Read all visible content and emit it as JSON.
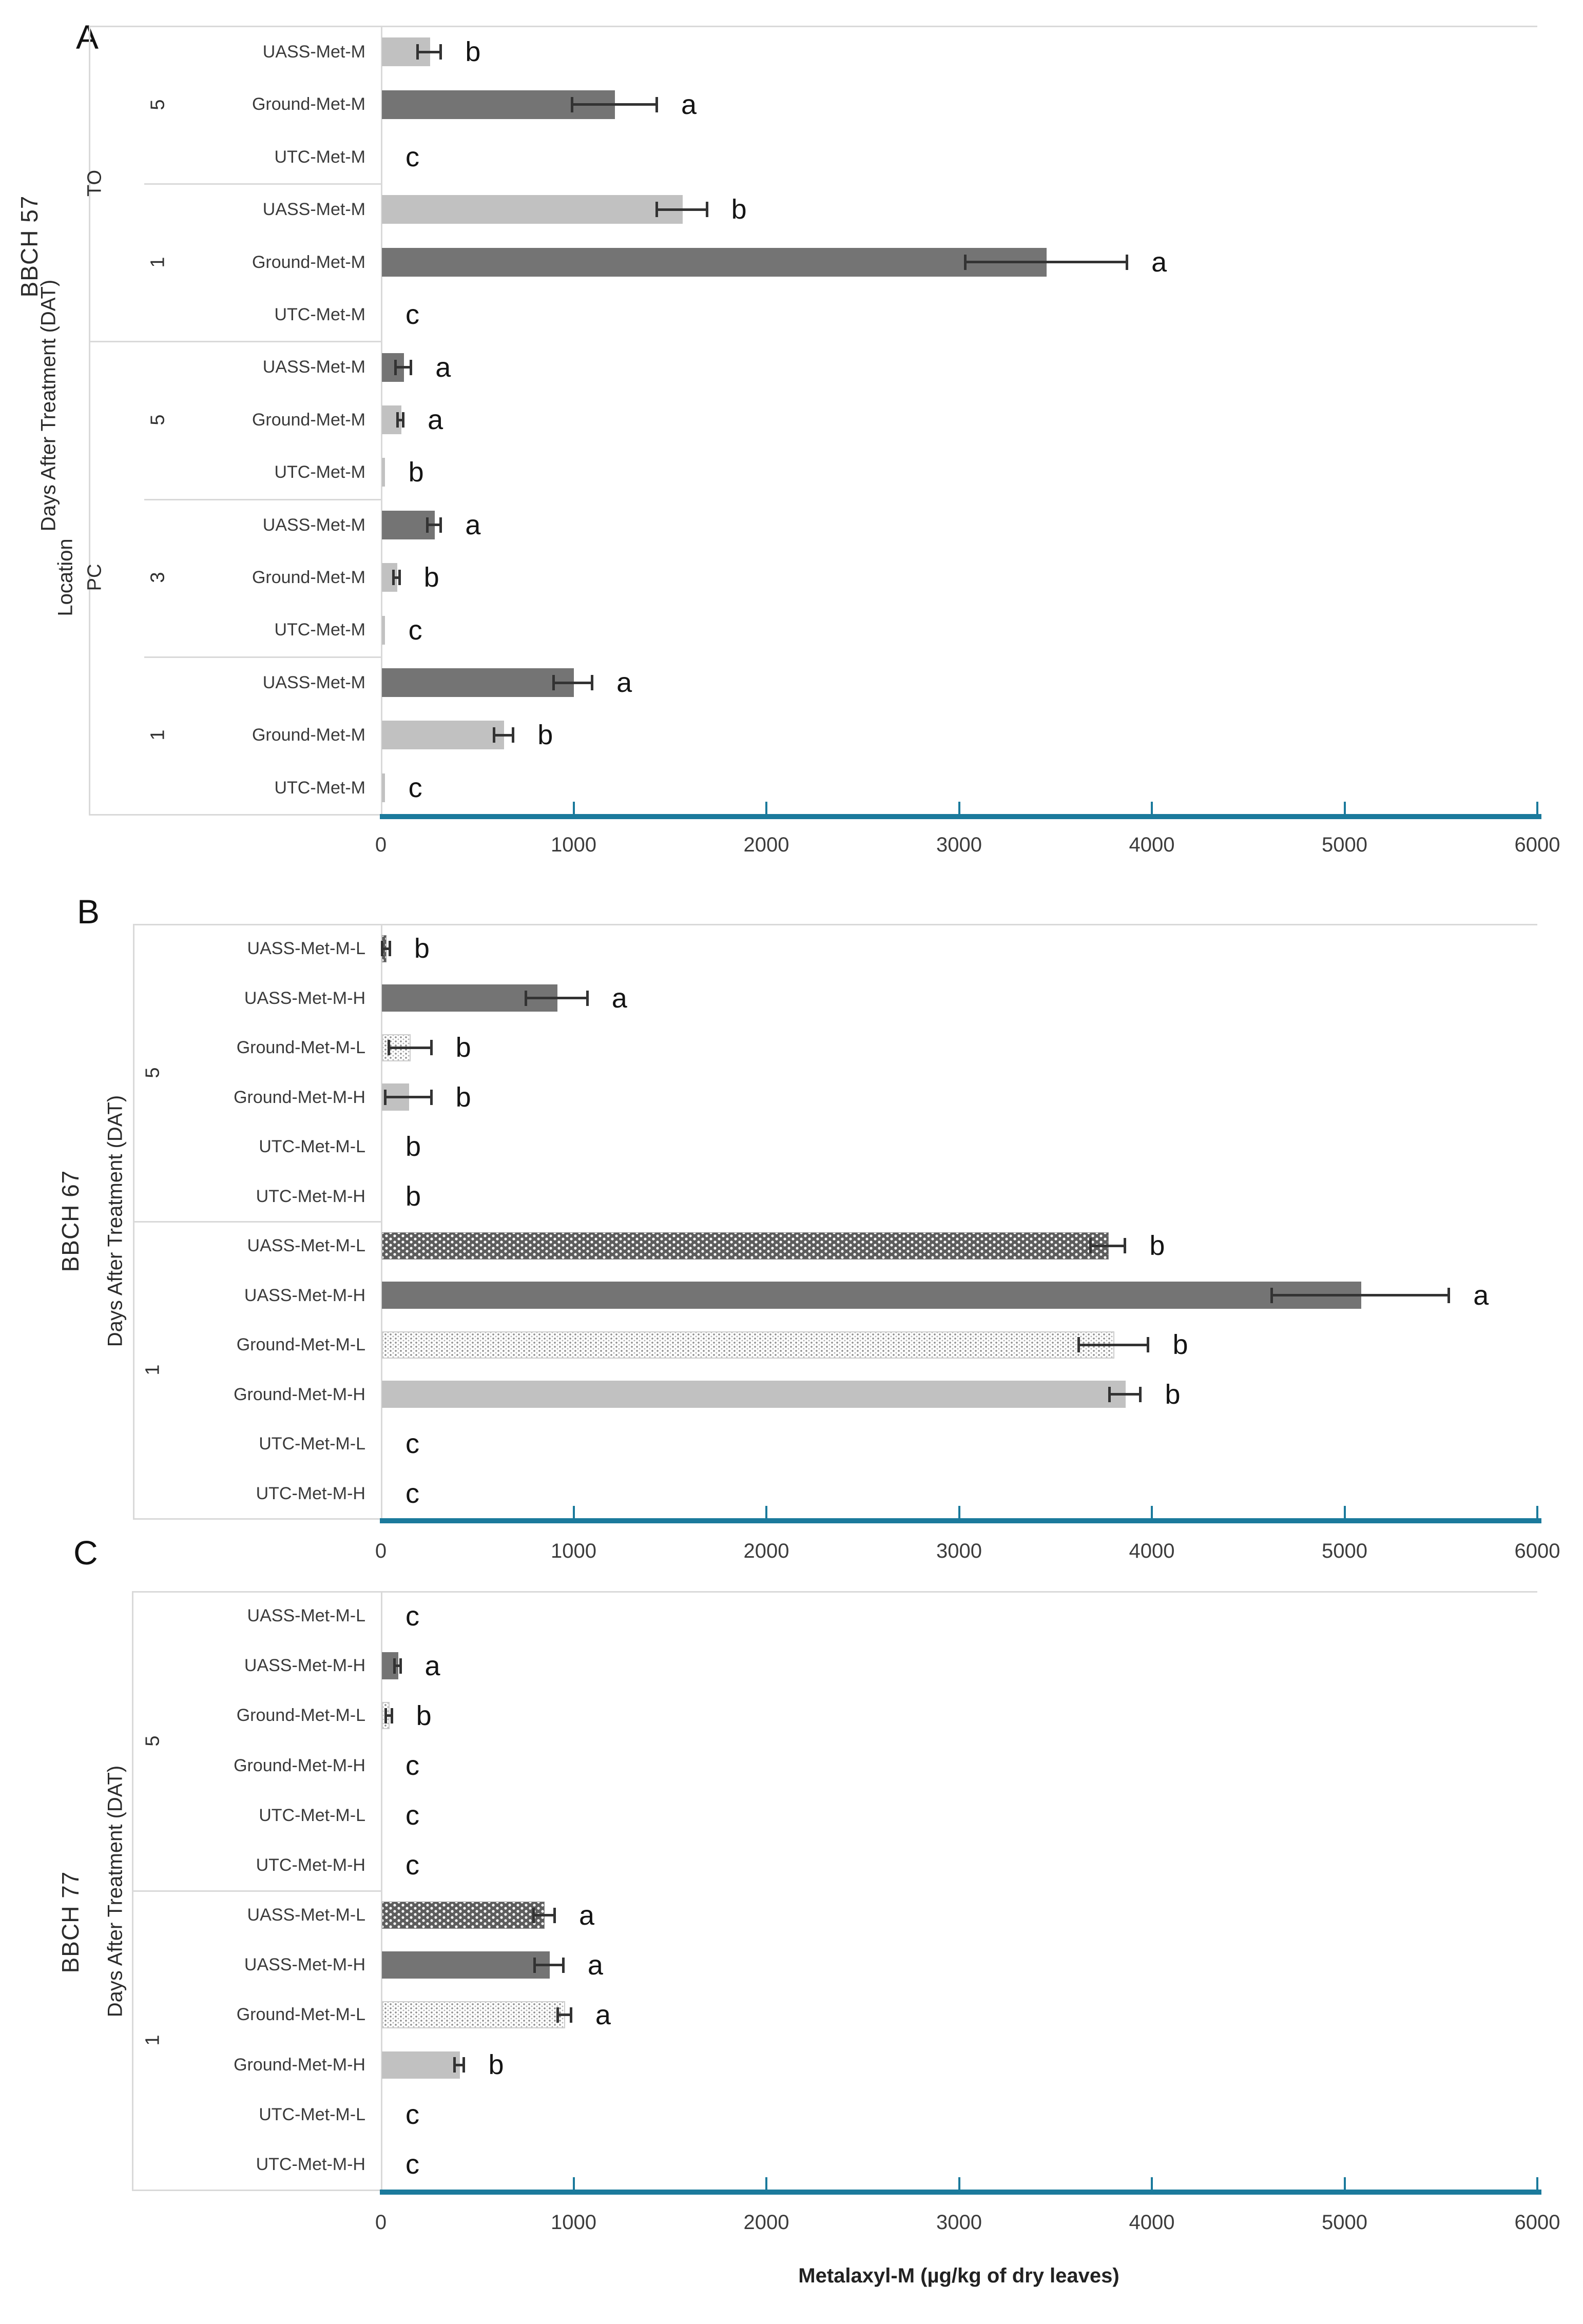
{
  "chart_data": {
    "type": "bar",
    "orientation": "horizontal",
    "xlabel": "Metalaxyl-M (µg/kg of dry leaves)",
    "x_axis": {
      "min": 0,
      "max": 6000,
      "step": 1000,
      "tick_labels": [
        "0",
        "1000",
        "2000",
        "3000",
        "4000",
        "5000",
        "6000"
      ]
    },
    "legend": "none",
    "colors": {
      "axis_line": "#1b7a9c",
      "bar_dark_gray": "#747474",
      "bar_light_gray": "#c1c1c1",
      "pattern_checker_dark": "#5d5d5d",
      "pattern_dot_gray": "#8f8f8f",
      "error_bar": "#333333"
    },
    "panels": [
      {
        "label": "A",
        "bbch_title": "BBCH 57",
        "dat_axis_title": "Days After Treatment (DAT)",
        "location_axis_title": "Location",
        "groups": [
          {
            "location": "TO",
            "dat": "5",
            "rows": [
              {
                "label": "UASS-Met-M",
                "value": 250,
                "error": 60,
                "letter": "b",
                "style": "light"
              },
              {
                "label": "Ground-Met-M",
                "value": 1210,
                "error": 220,
                "letter": "a",
                "style": "dark"
              },
              {
                "label": "UTC-Met-M",
                "value": 0,
                "error": 0,
                "letter": "c",
                "style": "none"
              }
            ]
          },
          {
            "location": "TO",
            "dat": "1",
            "rows": [
              {
                "label": "UASS-Met-M",
                "value": 1560,
                "error": 130,
                "letter": "b",
                "style": "light"
              },
              {
                "label": "Ground-Met-M",
                "value": 3450,
                "error": 420,
                "letter": "a",
                "style": "dark"
              },
              {
                "label": "UTC-Met-M",
                "value": 0,
                "error": 0,
                "letter": "c",
                "style": "none"
              }
            ]
          },
          {
            "location": "PC",
            "dat": "5",
            "rows": [
              {
                "label": "UASS-Met-M",
                "value": 115,
                "error": 40,
                "letter": "a",
                "style": "dark"
              },
              {
                "label": "Ground-Met-M",
                "value": 100,
                "error": 15,
                "letter": "a",
                "style": "light"
              },
              {
                "label": "UTC-Met-M",
                "value": 15,
                "error": 0,
                "letter": "b",
                "style": "light"
              }
            ]
          },
          {
            "location": "PC",
            "dat": "3",
            "rows": [
              {
                "label": "UASS-Met-M",
                "value": 275,
                "error": 35,
                "letter": "a",
                "style": "dark"
              },
              {
                "label": "Ground-Met-M",
                "value": 80,
                "error": 15,
                "letter": "b",
                "style": "light"
              },
              {
                "label": "UTC-Met-M",
                "value": 15,
                "error": 0,
                "letter": "c",
                "style": "light"
              }
            ]
          },
          {
            "location": "PC",
            "dat": "1",
            "rows": [
              {
                "label": "UASS-Met-M",
                "value": 995,
                "error": 100,
                "letter": "a",
                "style": "dark"
              },
              {
                "label": "Ground-Met-M",
                "value": 635,
                "error": 50,
                "letter": "b",
                "style": "light"
              },
              {
                "label": "UTC-Met-M",
                "value": 15,
                "error": 0,
                "letter": "c",
                "style": "light"
              }
            ]
          }
        ]
      },
      {
        "label": "B",
        "bbch_title": "BBCH 67",
        "dat_axis_title": "Days After Treatment (DAT)",
        "groups": [
          {
            "dat": "5",
            "rows": [
              {
                "label": "UASS-Met-M-L",
                "value": 25,
                "error": 20,
                "letter": "b",
                "style": "checker"
              },
              {
                "label": "UASS-Met-M-H",
                "value": 910,
                "error": 160,
                "letter": "a",
                "style": "dark"
              },
              {
                "label": "Ground-Met-M-L",
                "value": 150,
                "error": 110,
                "letter": "b",
                "style": "dotted"
              },
              {
                "label": "Ground-Met-M-H",
                "value": 140,
                "error": 120,
                "letter": "b",
                "style": "light"
              },
              {
                "label": "UTC-Met-M-L",
                "value": 0,
                "error": 0,
                "letter": "b",
                "style": "none"
              },
              {
                "label": "UTC-Met-M-H",
                "value": 0,
                "error": 0,
                "letter": "b",
                "style": "none"
              }
            ]
          },
          {
            "dat": "1",
            "rows": [
              {
                "label": "UASS-Met-M-L",
                "value": 3770,
                "error": 90,
                "letter": "b",
                "style": "checker"
              },
              {
                "label": "UASS-Met-M-H",
                "value": 5080,
                "error": 460,
                "letter": "a",
                "style": "dark"
              },
              {
                "label": "Ground-Met-M-L",
                "value": 3800,
                "error": 180,
                "letter": "b",
                "style": "dotted"
              },
              {
                "label": "Ground-Met-M-H",
                "value": 3860,
                "error": 80,
                "letter": "b",
                "style": "light"
              },
              {
                "label": "UTC-Met-M-L",
                "value": 0,
                "error": 0,
                "letter": "c",
                "style": "none"
              },
              {
                "label": "UTC-Met-M-H",
                "value": 0,
                "error": 0,
                "letter": "c",
                "style": "none"
              }
            ]
          }
        ]
      },
      {
        "label": "C",
        "bbch_title": "BBCH 77",
        "dat_axis_title": "Days After Treatment (DAT)",
        "groups": [
          {
            "dat": "5",
            "rows": [
              {
                "label": "UASS-Met-M-L",
                "value": 0,
                "error": 0,
                "letter": "c",
                "style": "none"
              },
              {
                "label": "UASS-Met-M-H",
                "value": 85,
                "error": 15,
                "letter": "a",
                "style": "dark"
              },
              {
                "label": "Ground-Met-M-L",
                "value": 40,
                "error": 15,
                "letter": "b",
                "style": "dotted"
              },
              {
                "label": "Ground-Met-M-H",
                "value": 0,
                "error": 0,
                "letter": "c",
                "style": "none"
              },
              {
                "label": "UTC-Met-M-L",
                "value": 0,
                "error": 0,
                "letter": "c",
                "style": "none"
              },
              {
                "label": "UTC-Met-M-H",
                "value": 0,
                "error": 0,
                "letter": "c",
                "style": "none"
              }
            ]
          },
          {
            "dat": "1",
            "rows": [
              {
                "label": "UASS-Met-M-L",
                "value": 845,
                "error": 55,
                "letter": "a",
                "style": "checker"
              },
              {
                "label": "UASS-Met-M-H",
                "value": 870,
                "error": 75,
                "letter": "a",
                "style": "dark"
              },
              {
                "label": "Ground-Met-M-L",
                "value": 950,
                "error": 35,
                "letter": "a",
                "style": "dotted"
              },
              {
                "label": "Ground-Met-M-H",
                "value": 405,
                "error": 25,
                "letter": "b",
                "style": "light"
              },
              {
                "label": "UTC-Met-M-L",
                "value": 0,
                "error": 0,
                "letter": "c",
                "style": "none"
              },
              {
                "label": "UTC-Met-M-H",
                "value": 0,
                "error": 0,
                "letter": "c",
                "style": "none"
              }
            ]
          }
        ]
      }
    ]
  }
}
